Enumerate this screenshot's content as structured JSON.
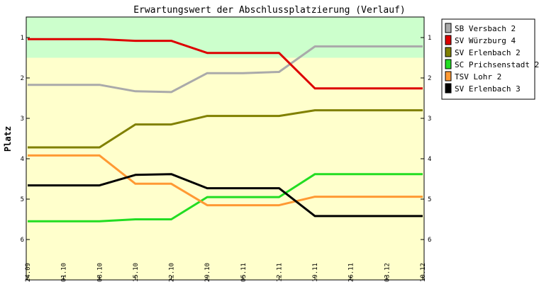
{
  "chart_data": {
    "type": "line",
    "title": "Erwartungswert der Abschlussplatzierung (Verlauf)",
    "xlabel": "",
    "ylabel": "Platz",
    "x": [
      "24.09",
      "01.10",
      "08.10",
      "15.10",
      "22.10",
      "29.10",
      "05.11",
      "12.11",
      "19.11",
      "26.11",
      "03.12",
      "10.12"
    ],
    "x_ticks_all": [
      "24.09",
      "01.10",
      "08.10",
      "15.10",
      "22.10",
      "29.10",
      "05.11",
      "12.11",
      "19.11",
      "26.11",
      "03.12",
      "10.12"
    ],
    "yticks": [
      "1",
      "2",
      "3",
      "4",
      "5",
      "6"
    ],
    "ylim": [
      0.5,
      7.0
    ],
    "y_inverted": true,
    "grid": false,
    "legend_position": "right",
    "bands": [
      {
        "from": 0.5,
        "to": 1.5,
        "color": "#ccffcc"
      },
      {
        "from": 1.5,
        "to": 7.0,
        "color": "#ffffcc"
      }
    ],
    "series": [
      {
        "name": "SB Versbach 2",
        "color": "#aaaaaa",
        "values": [
          2.17,
          2.17,
          2.17,
          2.33,
          2.35,
          1.88,
          1.88,
          1.85,
          1.22,
          1.22,
          1.22,
          1.22
        ]
      },
      {
        "name": "SV Würzburg 4",
        "color": "#dd0000",
        "values": [
          1.04,
          1.04,
          1.04,
          1.08,
          1.08,
          1.38,
          1.38,
          1.38,
          2.26,
          2.26,
          2.26,
          2.26
        ]
      },
      {
        "name": "SV Erlenbach 2",
        "color": "#808000",
        "values": [
          3.72,
          3.72,
          3.72,
          3.15,
          3.15,
          2.94,
          2.94,
          2.94,
          2.8,
          2.8,
          2.8,
          2.8
        ]
      },
      {
        "name": "SC Prichsenstadt 2",
        "color": "#22dd22",
        "values": [
          5.55,
          5.55,
          5.55,
          5.5,
          5.5,
          4.95,
          4.95,
          4.95,
          4.38,
          4.38,
          4.38,
          4.38
        ]
      },
      {
        "name": "TSV Lohr 2",
        "color": "#ff9933",
        "values": [
          3.92,
          3.92,
          3.92,
          4.62,
          4.62,
          5.15,
          5.15,
          5.15,
          4.94,
          4.94,
          4.94,
          4.94
        ]
      },
      {
        "name": "SV Erlenbach 3",
        "color": "#000000",
        "values": [
          4.66,
          4.66,
          4.66,
          4.4,
          4.38,
          4.73,
          4.73,
          4.73,
          5.42,
          5.42,
          5.42,
          5.42
        ]
      }
    ]
  }
}
